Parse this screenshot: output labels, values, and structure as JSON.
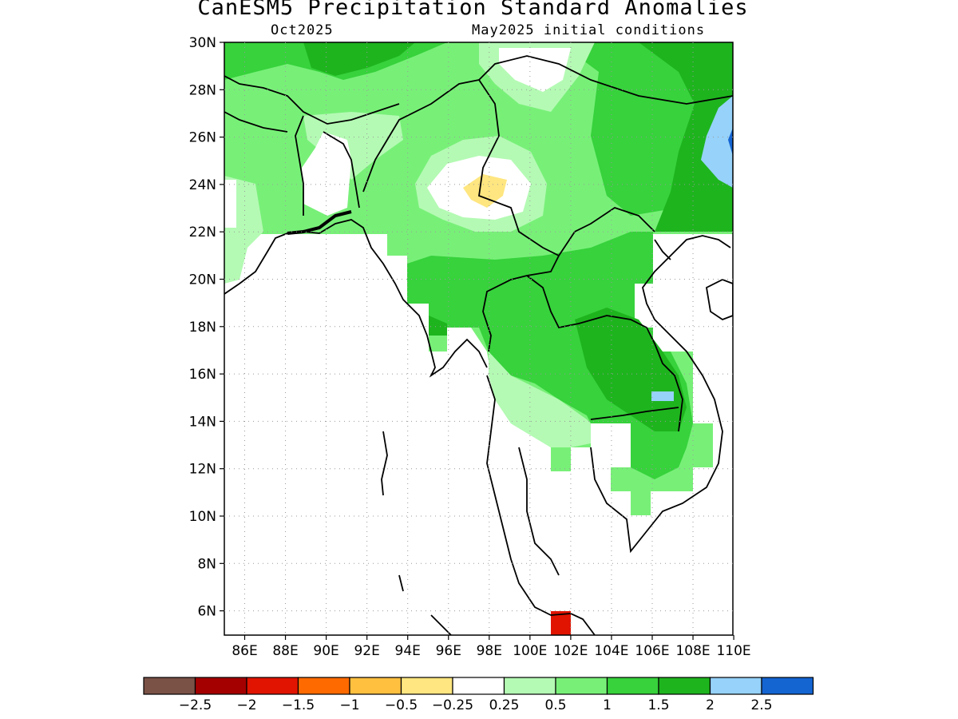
{
  "header": {
    "title": "CanESM5 Precipitation Standard Anomalies",
    "valid_month": "Oct2025",
    "init_conditions": "May2025 initial conditions"
  },
  "axes": {
    "lat_labels": [
      "30N",
      "28N",
      "26N",
      "24N",
      "22N",
      "20N",
      "18N",
      "16N",
      "14N",
      "12N",
      "10N",
      "8N",
      "6N"
    ],
    "lon_labels": [
      "86E",
      "88E",
      "90E",
      "92E",
      "94E",
      "96E",
      "98E",
      "100E",
      "102E",
      "104E",
      "106E",
      "108E",
      "110E"
    ]
  },
  "colorbar": {
    "colors": [
      "#7a5246",
      "#a50000",
      "#e01400",
      "#ff6a00",
      "#ffc040",
      "#ffe680",
      "#ffffff",
      "#b4fab4",
      "#78f078",
      "#37d23c",
      "#1eb41e",
      "#96d2fa",
      "#1464d2"
    ],
    "labels": [
      "−2.5",
      "−2",
      "−1.5",
      "−1",
      "−0.5",
      "−0.25",
      "0.25",
      "0.5",
      "1",
      "1.5",
      "2",
      "2.5"
    ]
  },
  "legend_colors": {
    "pale_green": "#b4fab4",
    "light_green": "#78f078",
    "green": "#37d23c",
    "dark_green": "#1eb41e",
    "light_blue": "#96d2fa",
    "blue": "#1464d2",
    "yellow": "#ffe680",
    "red": "#e01400"
  }
}
